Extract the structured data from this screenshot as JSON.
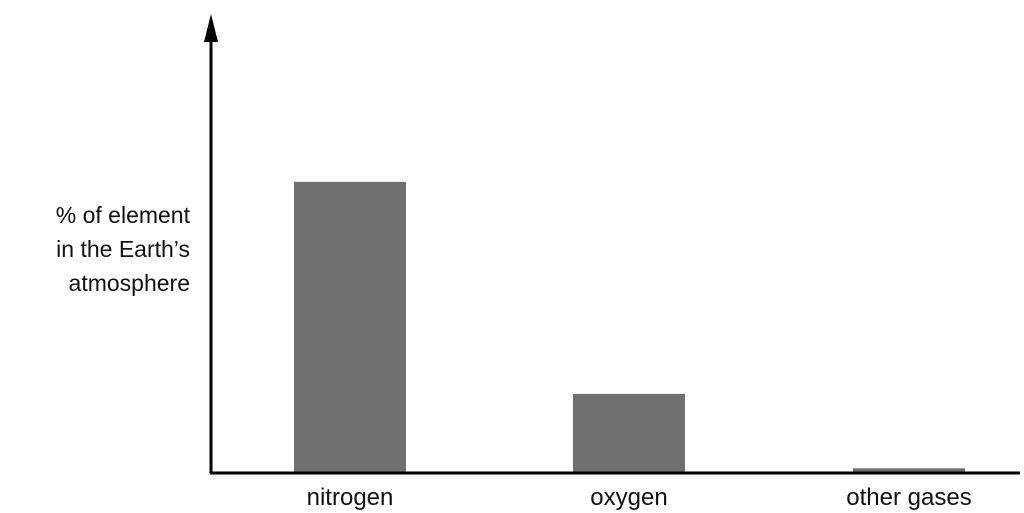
{
  "chart_data": {
    "type": "bar",
    "title": "",
    "xlabel": "",
    "ylabel_lines": [
      "% of element",
      "in the Earth’s",
      "atmosphere"
    ],
    "categories": [
      "nitrogen",
      "oxygen",
      "other gases"
    ],
    "values": [
      78,
      21,
      1
    ],
    "ylim": [
      0,
      100
    ],
    "y_ticks_shown": false,
    "grid": false,
    "bar_color": "#707070",
    "axis_color": "#000000"
  }
}
